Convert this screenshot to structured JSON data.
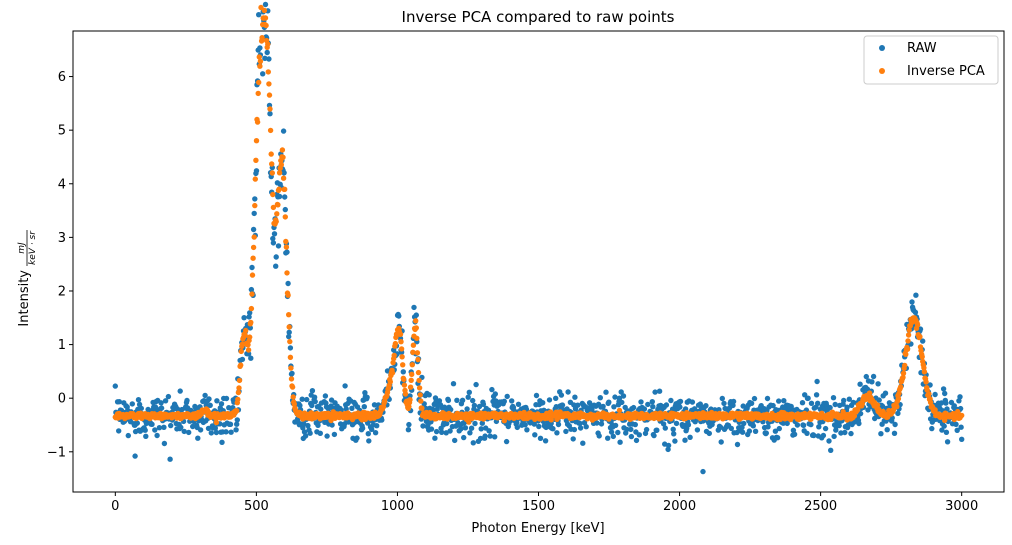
{
  "chart_data": {
    "type": "scatter",
    "title": "Inverse PCA compared to raw points",
    "xlabel": "Photon Energy [keV]",
    "ylabel_main": "Intensity",
    "ylabel_frac_num": "mJ",
    "ylabel_frac_den": "keV · sr",
    "xlim": [
      -150,
      3150
    ],
    "ylim": [
      -1.75,
      6.85
    ],
    "xticks": [
      0,
      500,
      1000,
      1500,
      2000,
      2500,
      3000
    ],
    "xtick_labels": [
      "0",
      "500",
      "1000",
      "1500",
      "2000",
      "2500",
      "3000"
    ],
    "yticks": [
      -1,
      0,
      1,
      2,
      3,
      4,
      5,
      6
    ],
    "ytick_labels": [
      "−1",
      "0",
      "1",
      "2",
      "3",
      "4",
      "5",
      "6"
    ],
    "grid": false,
    "legend_position": "top-right",
    "x_range": [
      0,
      3000
    ],
    "num_points": 1500,
    "baseline": -0.33,
    "noise_std": 0.2,
    "peaks": [
      {
        "center": 315,
        "height": 0.1,
        "width": 12
      },
      {
        "center": 455,
        "height": 1.4,
        "width": 12
      },
      {
        "center": 517,
        "height": 6.6,
        "width": 22
      },
      {
        "center": 545,
        "height": 3.0,
        "width": 15
      },
      {
        "center": 590,
        "height": 4.7,
        "width": 18
      },
      {
        "center": 975,
        "height": 0.5,
        "width": 18
      },
      {
        "center": 1005,
        "height": 1.5,
        "width": 14
      },
      {
        "center": 1063,
        "height": 1.7,
        "width": 10
      },
      {
        "center": 2668,
        "height": 0.35,
        "width": 25
      },
      {
        "center": 2830,
        "height": 1.8,
        "width": 30
      }
    ],
    "series": [
      {
        "name": "RAW",
        "color": "#1f77b4",
        "noisy": true
      },
      {
        "name": "Inverse PCA",
        "color": "#ff7f0e",
        "noisy": false
      }
    ],
    "notable_points": [
      {
        "x": 2083,
        "y": -1.37,
        "series": "RAW"
      },
      {
        "x": 70,
        "y": -1.08,
        "series": "RAW"
      }
    ]
  }
}
